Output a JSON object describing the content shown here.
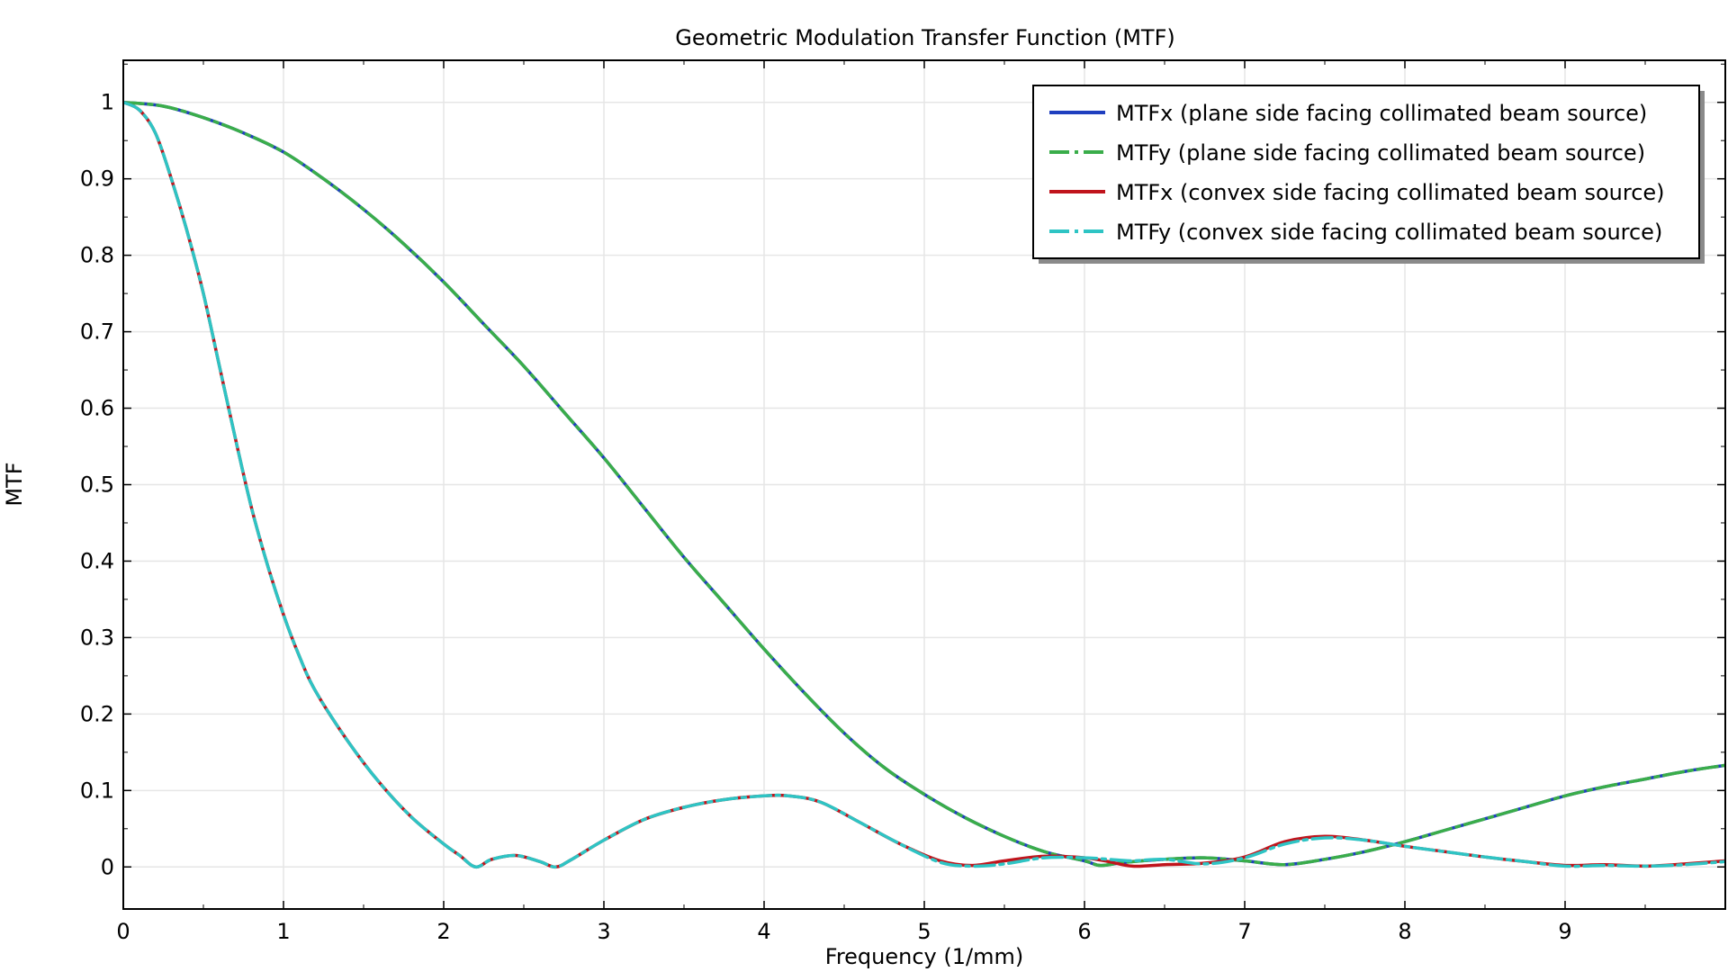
{
  "chart_data": {
    "type": "line",
    "title": "Geometric Modulation Transfer Function (MTF)",
    "xlabel": "Frequency (1/mm)",
    "ylabel": "MTF",
    "xlim": [
      0,
      10
    ],
    "ylim": [
      -0.055,
      1.055
    ],
    "xticks": [
      0,
      1,
      2,
      3,
      4,
      5,
      6,
      7,
      8,
      9
    ],
    "yticks": [
      0,
      0.1,
      0.2,
      0.3,
      0.4,
      0.5,
      0.6,
      0.7,
      0.8,
      0.9,
      1
    ],
    "grid": true,
    "legend_position": "top-right",
    "series": [
      {
        "name": "MTFx (plane side facing collimated beam source)",
        "color": "#1f3fbf",
        "style": "solid",
        "x": [
          0,
          0.25,
          0.5,
          0.75,
          1,
          1.25,
          1.5,
          1.75,
          2,
          2.25,
          2.5,
          2.75,
          3,
          3.25,
          3.5,
          3.75,
          4,
          4.25,
          4.5,
          4.75,
          5,
          5.25,
          5.5,
          5.75,
          6,
          6.1,
          6.25,
          6.5,
          6.75,
          7,
          7.25,
          7.5,
          7.75,
          8,
          8.25,
          8.5,
          8.75,
          9,
          9.25,
          9.5,
          9.75,
          10
        ],
        "y": [
          1,
          0.995,
          0.98,
          0.96,
          0.935,
          0.9,
          0.86,
          0.815,
          0.765,
          0.71,
          0.655,
          0.595,
          0.535,
          0.47,
          0.405,
          0.345,
          0.285,
          0.228,
          0.175,
          0.13,
          0.095,
          0.065,
          0.04,
          0.02,
          0.008,
          0.002,
          0.006,
          0.01,
          0.012,
          0.008,
          0.003,
          0.01,
          0.02,
          0.033,
          0.048,
          0.063,
          0.078,
          0.093,
          0.105,
          0.115,
          0.125,
          0.133
        ]
      },
      {
        "name": "MTFy (plane side facing collimated beam source)",
        "color": "#3aad4a",
        "style": "dashdot",
        "x": [
          0,
          0.25,
          0.5,
          0.75,
          1,
          1.25,
          1.5,
          1.75,
          2,
          2.25,
          2.5,
          2.75,
          3,
          3.25,
          3.5,
          3.75,
          4,
          4.25,
          4.5,
          4.75,
          5,
          5.25,
          5.5,
          5.75,
          6,
          6.1,
          6.25,
          6.5,
          6.75,
          7,
          7.25,
          7.5,
          7.75,
          8,
          8.25,
          8.5,
          8.75,
          9,
          9.25,
          9.5,
          9.75,
          10
        ],
        "y": [
          1,
          0.995,
          0.98,
          0.96,
          0.935,
          0.9,
          0.86,
          0.815,
          0.765,
          0.71,
          0.655,
          0.595,
          0.535,
          0.47,
          0.405,
          0.345,
          0.285,
          0.228,
          0.175,
          0.13,
          0.095,
          0.065,
          0.04,
          0.02,
          0.008,
          0.002,
          0.006,
          0.01,
          0.012,
          0.008,
          0.003,
          0.01,
          0.02,
          0.033,
          0.048,
          0.063,
          0.078,
          0.093,
          0.105,
          0.115,
          0.125,
          0.133
        ]
      },
      {
        "name": "MTFx (convex side facing collimated beam source)",
        "color": "#c0141c",
        "style": "solid",
        "x": [
          0,
          0.1,
          0.2,
          0.3,
          0.4,
          0.5,
          0.6,
          0.7,
          0.8,
          0.9,
          1,
          1.1,
          1.2,
          1.4,
          1.6,
          1.8,
          2,
          2.1,
          2.2,
          2.3,
          2.45,
          2.6,
          2.7,
          2.8,
          3,
          3.25,
          3.5,
          3.75,
          4,
          4.15,
          4.35,
          4.6,
          4.85,
          5.1,
          5.3,
          5.5,
          5.75,
          6,
          6.15,
          6.3,
          6.5,
          6.75,
          7,
          7.25,
          7.5,
          7.75,
          8,
          8.25,
          8.5,
          8.75,
          9,
          9.25,
          9.5,
          9.75,
          10
        ],
        "y": [
          1,
          0.99,
          0.96,
          0.9,
          0.83,
          0.75,
          0.655,
          0.56,
          0.47,
          0.395,
          0.33,
          0.275,
          0.23,
          0.165,
          0.11,
          0.065,
          0.03,
          0.015,
          0,
          0.01,
          0.015,
          0.007,
          0,
          0.01,
          0.035,
          0.062,
          0.078,
          0.088,
          0.093,
          0.093,
          0.085,
          0.058,
          0.03,
          0.008,
          0.002,
          0.008,
          0.014,
          0.012,
          0.007,
          0.001,
          0.003,
          0.005,
          0.013,
          0.033,
          0.04,
          0.035,
          0.027,
          0.02,
          0.013,
          0.007,
          0.002,
          0.003,
          0.001,
          0.004,
          0.008
        ]
      },
      {
        "name": "MTFy (convex side facing collimated beam source)",
        "color": "#2ec4c4",
        "style": "dashdot",
        "x": [
          0,
          0.1,
          0.2,
          0.3,
          0.4,
          0.5,
          0.6,
          0.7,
          0.8,
          0.9,
          1,
          1.1,
          1.2,
          1.4,
          1.6,
          1.8,
          2,
          2.1,
          2.2,
          2.3,
          2.45,
          2.6,
          2.7,
          2.8,
          3,
          3.25,
          3.5,
          3.75,
          4,
          4.15,
          4.35,
          4.6,
          4.85,
          5.1,
          5.3,
          5.5,
          5.75,
          6,
          6.15,
          6.3,
          6.5,
          6.75,
          7,
          7.25,
          7.5,
          7.75,
          8,
          8.25,
          8.5,
          8.75,
          9,
          9.25,
          9.5,
          9.75,
          10
        ],
        "y": [
          1,
          0.99,
          0.96,
          0.9,
          0.83,
          0.75,
          0.655,
          0.56,
          0.47,
          0.395,
          0.33,
          0.275,
          0.23,
          0.165,
          0.11,
          0.065,
          0.03,
          0.015,
          0,
          0.01,
          0.015,
          0.007,
          0,
          0.01,
          0.035,
          0.062,
          0.078,
          0.088,
          0.093,
          0.093,
          0.085,
          0.058,
          0.03,
          0.006,
          0.001,
          0.004,
          0.012,
          0.012,
          0.01,
          0.008,
          0.01,
          0.004,
          0.012,
          0.03,
          0.038,
          0.035,
          0.027,
          0.02,
          0.013,
          0.007,
          0.001,
          0.002,
          0.001,
          0.003,
          0.007
        ]
      }
    ]
  }
}
